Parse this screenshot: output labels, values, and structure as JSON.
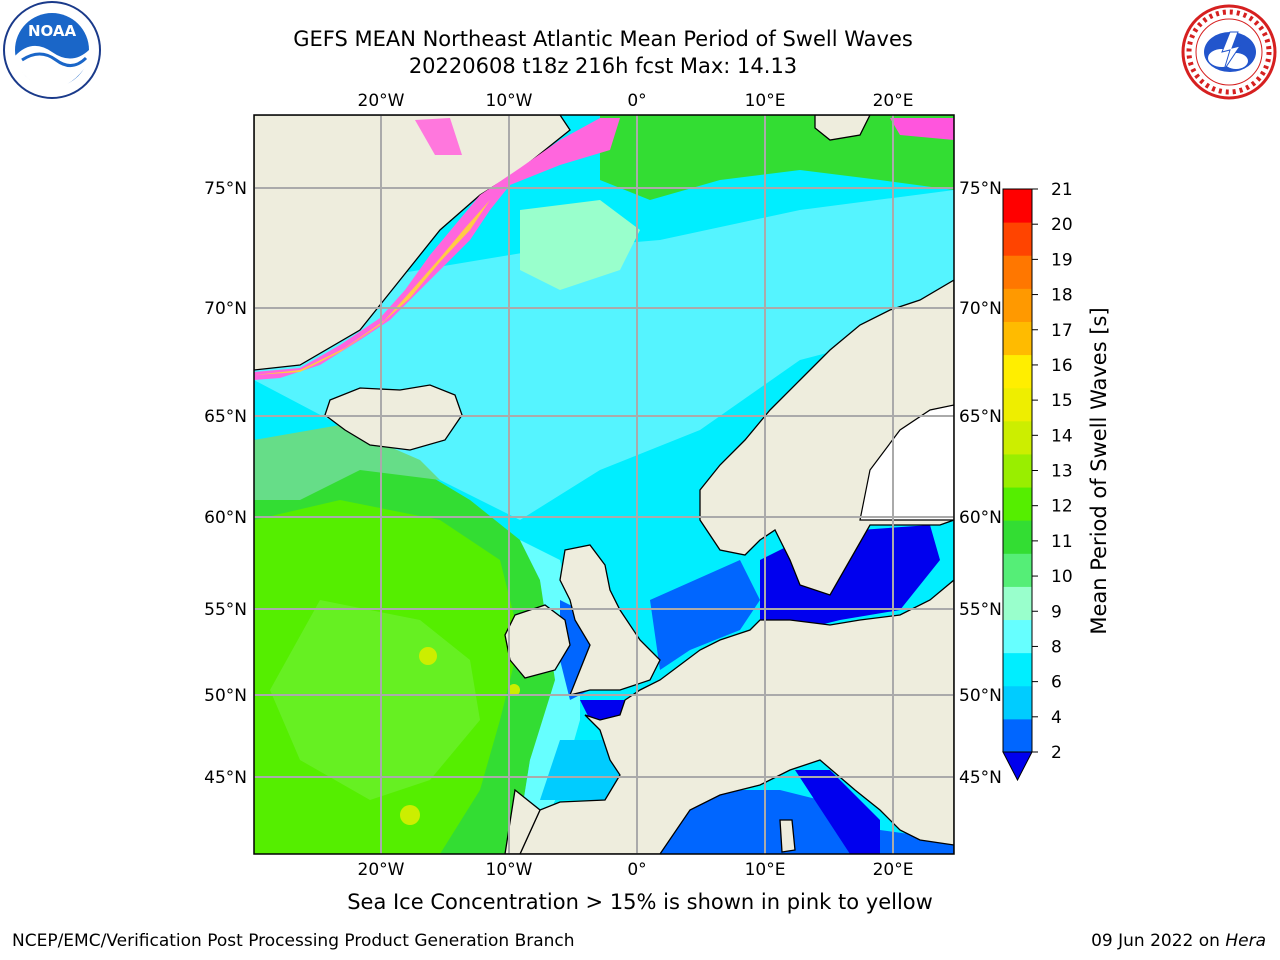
{
  "header": {
    "title_line1": "GEFS MEAN Northeast Atlantic Mean Period of Swell Waves",
    "title_line2": "20220608 t18z 216h fcst   Max: 14.13"
  },
  "logos": {
    "left": "NOAA",
    "right": "NATIONAL WEATHER SERVICE"
  },
  "map": {
    "lon_labels": [
      "20°W",
      "10°W",
      "0°",
      "10°E",
      "20°E"
    ],
    "lat_labels": [
      "75°N",
      "70°N",
      "65°N",
      "60°N",
      "55°N",
      "50°N",
      "45°N"
    ],
    "land_color": "#eeeddd",
    "ocean_color": "#00eeff"
  },
  "colorbar": {
    "label": "Mean Period of Swell Waves [s]",
    "ticks": [
      "2",
      "4",
      "6",
      "8",
      "9",
      "10",
      "11",
      "12",
      "13",
      "14",
      "15",
      "16",
      "17",
      "18",
      "19",
      "20",
      "21"
    ],
    "colors": [
      "#0066ff",
      "#00ccff",
      "#00eeff",
      "#66ffff",
      "#99ffcc",
      "#55ee77",
      "#33dd33",
      "#55ee00",
      "#99ee00",
      "#ccee00",
      "#eeee00",
      "#ffee00",
      "#ffbb00",
      "#ff9900",
      "#ff7700",
      "#ff4400",
      "#ff0000"
    ],
    "under_color": "#0000ee"
  },
  "caption": "Sea Ice Concentration > 15% is shown in pink to yellow",
  "footer": {
    "left": "NCEP/EMC/Verification Post Processing Product Generation Branch",
    "right_date": "09 Jun 2022 on ",
    "right_host": "Hera"
  }
}
